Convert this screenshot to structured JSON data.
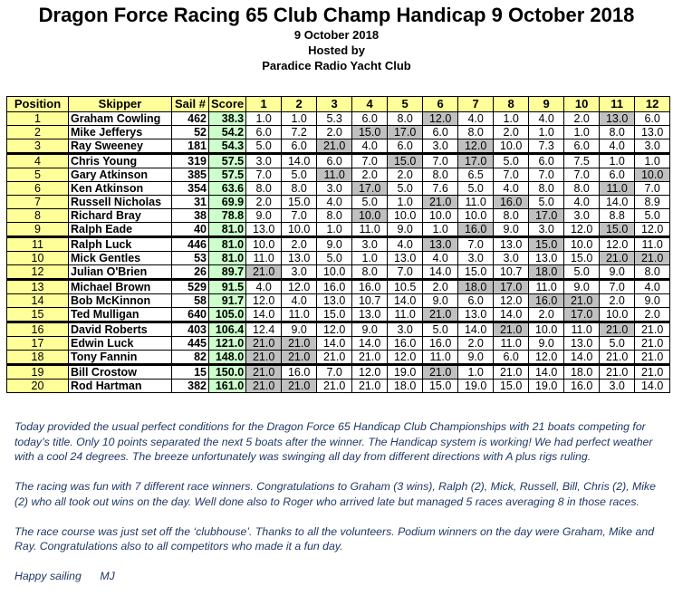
{
  "header": {
    "title": "Dragon Force Racing 65 Club Champ Handicap 9 October 2018",
    "date": "9 October 2018",
    "hosted_by": "Hosted by",
    "club": "Paradice Radio Yacht Club"
  },
  "table": {
    "columns": [
      "Position",
      "Skipper",
      "Sail #",
      "Score",
      "1",
      "2",
      "3",
      "4",
      "5",
      "6",
      "7",
      "8",
      "9",
      "10",
      "11",
      "12"
    ],
    "rows": [
      {
        "pos": "1",
        "skipper": "Graham Cowling",
        "sail": "462",
        "score": "38.3",
        "races": [
          "1.0",
          "1.0",
          "5.3",
          "6.0",
          "8.0",
          "12.0",
          "4.0",
          "1.0",
          "4.0",
          "2.0",
          "13.0",
          "6.0"
        ],
        "hl": [
          5,
          10
        ]
      },
      {
        "pos": "2",
        "skipper": "Mike Jefferys",
        "sail": "52",
        "score": "54.2",
        "races": [
          "6.0",
          "7.2",
          "2.0",
          "15.0",
          "17.0",
          "6.0",
          "8.0",
          "2.0",
          "1.0",
          "1.0",
          "8.0",
          "13.0"
        ],
        "hl": [
          3,
          4
        ]
      },
      {
        "pos": "3",
        "skipper": "Ray Sweeney",
        "sail": "181",
        "score": "54.3",
        "races": [
          "5.0",
          "6.0",
          "21.0",
          "4.0",
          "6.0",
          "3.0",
          "12.0",
          "10.0",
          "7.3",
          "6.0",
          "4.0",
          "3.0"
        ],
        "hl": [
          2,
          6
        ]
      },
      {
        "pos": "4",
        "skipper": "Chris Young",
        "sail": "319",
        "score": "57.5",
        "races": [
          "3.0",
          "14.0",
          "6.0",
          "7.0",
          "15.0",
          "7.0",
          "17.0",
          "5.0",
          "6.0",
          "7.5",
          "1.0",
          "1.0"
        ],
        "hl": [
          4,
          6
        ]
      },
      {
        "pos": "5",
        "skipper": "Gary Atkinson",
        "sail": "385",
        "score": "57.5",
        "races": [
          "7.0",
          "5.0",
          "11.0",
          "2.0",
          "2.0",
          "8.0",
          "6.5",
          "7.0",
          "7.0",
          "7.0",
          "6.0",
          "10.0"
        ],
        "hl": [
          2,
          11
        ]
      },
      {
        "pos": "6",
        "skipper": "Ken Atkinson",
        "sail": "354",
        "score": "63.6",
        "races": [
          "8.0",
          "8.0",
          "3.0",
          "17.0",
          "5.0",
          "7.6",
          "5.0",
          "4.0",
          "8.0",
          "8.0",
          "11.0",
          "7.0"
        ],
        "hl": [
          3,
          10
        ]
      },
      {
        "pos": "7",
        "skipper": "Russell Nicholas",
        "sail": "31",
        "score": "69.9",
        "races": [
          "2.0",
          "15.0",
          "4.0",
          "5.0",
          "1.0",
          "21.0",
          "11.0",
          "16.0",
          "5.0",
          "4.0",
          "14.0",
          "8.9"
        ],
        "hl": [
          5,
          7
        ]
      },
      {
        "pos": "8",
        "skipper": "Richard Bray",
        "sail": "38",
        "score": "78.8",
        "races": [
          "9.0",
          "7.0",
          "8.0",
          "10.0",
          "10.0",
          "10.0",
          "10.0",
          "8.0",
          "17.0",
          "3.0",
          "8.8",
          "5.0"
        ],
        "hl": [
          3,
          8
        ]
      },
      {
        "pos": "9",
        "skipper": "Ralph Eade",
        "sail": "40",
        "score": "81.0",
        "races": [
          "13.0",
          "10.0",
          "1.0",
          "11.0",
          "9.0",
          "1.0",
          "16.0",
          "9.0",
          "3.0",
          "12.0",
          "15.0",
          "12.0"
        ],
        "hl": [
          6,
          10
        ]
      },
      {
        "pos": "11",
        "skipper": "Ralph Luck",
        "sail": "446",
        "score": "81.0",
        "races": [
          "10.0",
          "2.0",
          "9.0",
          "3.0",
          "4.0",
          "13.0",
          "7.0",
          "13.0",
          "15.0",
          "10.0",
          "12.0",
          "11.0"
        ],
        "hl": [
          5,
          8
        ]
      },
      {
        "pos": "10",
        "skipper": "Mick Gentles",
        "sail": "53",
        "score": "81.0",
        "races": [
          "11.0",
          "13.0",
          "5.0",
          "1.0",
          "13.0",
          "4.0",
          "3.0",
          "3.0",
          "13.0",
          "15.0",
          "21.0",
          "21.0"
        ],
        "hl": [
          10,
          11
        ]
      },
      {
        "pos": "12",
        "skipper": "Julian O'Brien",
        "sail": "26",
        "score": "89.7",
        "races": [
          "21.0",
          "3.0",
          "10.0",
          "8.0",
          "7.0",
          "14.0",
          "15.0",
          "10.7",
          "18.0",
          "5.0",
          "9.0",
          "8.0"
        ],
        "hl": [
          0,
          8
        ]
      },
      {
        "pos": "13",
        "skipper": "Michael Brown",
        "sail": "529",
        "score": "91.5",
        "races": [
          "4.0",
          "12.0",
          "16.0",
          "16.0",
          "10.5",
          "2.0",
          "18.0",
          "17.0",
          "11.0",
          "9.0",
          "7.0",
          "4.0"
        ],
        "hl": [
          6,
          7
        ]
      },
      {
        "pos": "14",
        "skipper": "Bob McKinnon",
        "sail": "58",
        "score": "91.7",
        "races": [
          "12.0",
          "4.0",
          "13.0",
          "10.7",
          "14.0",
          "9.0",
          "6.0",
          "12.0",
          "16.0",
          "21.0",
          "2.0",
          "9.0"
        ],
        "hl": [
          8,
          9
        ]
      },
      {
        "pos": "15",
        "skipper": "Ted Mulligan",
        "sail": "640",
        "score": "105.0",
        "races": [
          "14.0",
          "11.0",
          "15.0",
          "13.0",
          "11.0",
          "21.0",
          "13.0",
          "14.0",
          "2.0",
          "17.0",
          "10.0",
          "2.0"
        ],
        "hl": [
          5,
          9
        ]
      },
      {
        "pos": "16",
        "skipper": "David Roberts",
        "sail": "403",
        "score": "106.4",
        "races": [
          "12.4",
          "9.0",
          "12.0",
          "9.0",
          "3.0",
          "5.0",
          "14.0",
          "21.0",
          "10.0",
          "11.0",
          "21.0",
          "21.0"
        ],
        "hl": [
          7,
          10
        ]
      },
      {
        "pos": "17",
        "skipper": "Edwin Luck",
        "sail": "445",
        "score": "121.0",
        "races": [
          "21.0",
          "21.0",
          "14.0",
          "14.0",
          "16.0",
          "16.0",
          "2.0",
          "11.0",
          "9.0",
          "13.0",
          "5.0",
          "21.0"
        ],
        "hl": [
          0,
          1
        ]
      },
      {
        "pos": "18",
        "skipper": "Tony Fannin",
        "sail": "82",
        "score": "148.0",
        "races": [
          "21.0",
          "21.0",
          "21.0",
          "21.0",
          "12.0",
          "11.0",
          "9.0",
          "6.0",
          "12.0",
          "14.0",
          "21.0",
          "21.0"
        ],
        "hl": [
          0,
          1
        ]
      },
      {
        "pos": "19",
        "skipper": "Bill Crostow",
        "sail": "15",
        "score": "150.0",
        "races": [
          "21.0",
          "16.0",
          "7.0",
          "12.0",
          "19.0",
          "21.0",
          "1.0",
          "21.0",
          "14.0",
          "18.0",
          "21.0",
          "21.0"
        ],
        "hl": [
          0,
          5
        ]
      },
      {
        "pos": "20",
        "skipper": "Rod Hartman",
        "sail": "382",
        "score": "161.0",
        "races": [
          "21.0",
          "21.0",
          "21.0",
          "21.0",
          "18.0",
          "15.0",
          "19.0",
          "15.0",
          "19.0",
          "16.0",
          "3.0",
          "14.0"
        ],
        "hl": [
          0,
          1
        ]
      }
    ]
  },
  "report": {
    "p1": "Today provided the usual perfect conditions for the Dragon Force 65 Handicap Club Championships with 21 boats competing for today’s title. Only 10 points separated the next 5 boats after the winner. The Handicap system is working! We had perfect weather with a cool 24 degrees. The breeze unfortunately was swinging all day from different directions with A plus rigs ruling.",
    "p2": "The racing was fun with 7 different race winners. Congratulations to Graham (3 wins), Ralph (2), Mick, Russell, Bill, Chris (2), Mike (2) who all took out wins on the day. Well done also to Roger who arrived late but managed 5 races averaging 8 in those races.",
    "p3": "The race course was just set off the ‘clubhouse’. Thanks to all the volunteers. Podium winners on the day were Graham, Mike and Ray. Congratulations also to all competitors who made it a fun day.",
    "p4": "Happy sailing      MJ"
  }
}
